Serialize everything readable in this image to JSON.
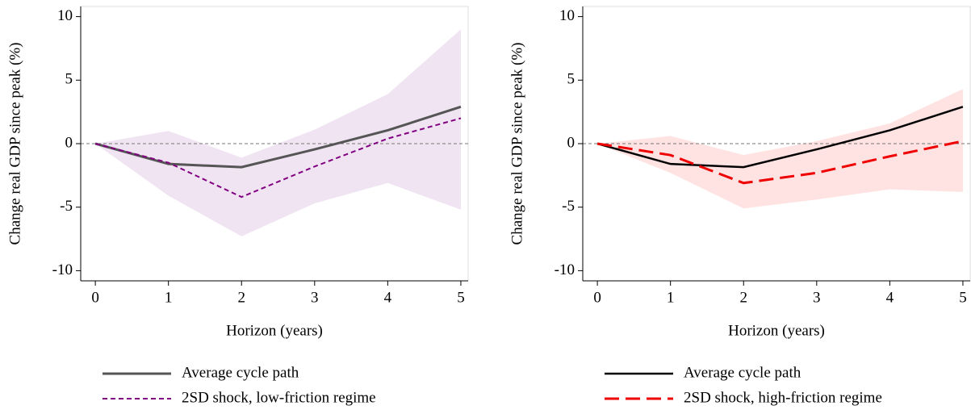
{
  "chart_data": [
    {
      "type": "line",
      "x": [
        0,
        1,
        2,
        3,
        4,
        5
      ],
      "xlim": [
        -0.2,
        5.1
      ],
      "ylim": [
        -10.8,
        10.8
      ],
      "xticks": [
        0,
        1,
        2,
        3,
        4,
        5
      ],
      "yticks": [
        -10,
        -5,
        0,
        5,
        10
      ],
      "xlabel": "Horizon (years)",
      "ylabel": "Change real GDP since peak (%)",
      "hline": 0,
      "band": {
        "color": "#f0e4f2",
        "upper": [
          0,
          1.0,
          -1.1,
          1.1,
          3.9,
          9.0
        ],
        "lower": [
          0,
          -4.1,
          -7.3,
          -4.7,
          -3.1,
          -5.2
        ]
      },
      "series": [
        {
          "name": "Average cycle path",
          "color": "#555555",
          "dash": "",
          "width": 3,
          "values": [
            0,
            -1.6,
            -1.85,
            -0.45,
            1.05,
            2.9
          ]
        },
        {
          "name": "2SD shock, low-friction regime",
          "color": "#800080",
          "dash": "6,4",
          "width": 2,
          "values": [
            0,
            -1.5,
            -4.2,
            -1.8,
            0.4,
            2.0
          ]
        }
      ]
    },
    {
      "type": "line",
      "x": [
        0,
        1,
        2,
        3,
        4,
        5
      ],
      "xlim": [
        -0.2,
        5.1
      ],
      "ylim": [
        -10.8,
        10.8
      ],
      "xticks": [
        0,
        1,
        2,
        3,
        4,
        5
      ],
      "yticks": [
        -10,
        -5,
        0,
        5,
        10
      ],
      "xlabel": "Horizon (years)",
      "ylabel": "Change real GDP since peak (%)",
      "hline": 0,
      "band": {
        "color": "#ffe2e2",
        "upper": [
          0,
          0.6,
          -0.9,
          0.2,
          1.6,
          4.3
        ],
        "lower": [
          0,
          -2.3,
          -5.1,
          -4.4,
          -3.6,
          -3.8
        ]
      },
      "series": [
        {
          "name": "Average cycle path",
          "color": "#000000",
          "dash": "",
          "width": 2.5,
          "values": [
            0,
            -1.6,
            -1.85,
            -0.45,
            1.05,
            2.9
          ]
        },
        {
          "name": "2SD shock, high-friction regime",
          "color": "#ee0000",
          "dash": "18,8",
          "width": 3,
          "values": [
            0,
            -0.9,
            -3.1,
            -2.3,
            -1.0,
            0.2
          ]
        }
      ]
    }
  ]
}
